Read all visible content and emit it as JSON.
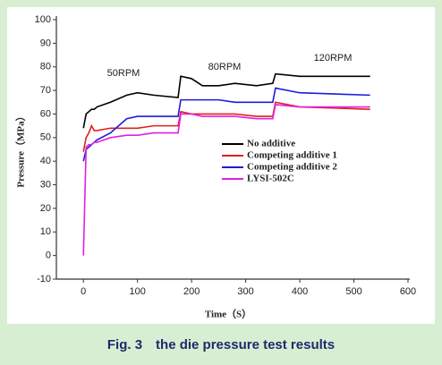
{
  "chart_data": {
    "type": "line",
    "caption": "Fig. 3　the die pressure test results",
    "x_label": "Time（S）",
    "y_label": "Pressure（MPa）",
    "annotations": [
      "50RPM",
      "80RPM",
      "120RPM"
    ],
    "x": [
      0,
      5,
      10,
      15,
      20,
      25,
      50,
      80,
      100,
      130,
      175,
      180,
      200,
      220,
      250,
      280,
      320,
      350,
      355,
      400,
      530
    ],
    "series": [
      {
        "name": "No additive",
        "color": "#000000",
        "values": [
          54,
          60,
          61,
          62,
          62,
          63,
          65,
          68,
          69,
          68,
          67,
          76,
          75,
          72,
          72,
          73,
          72,
          73,
          77,
          76,
          76
        ]
      },
      {
        "name": "Competing additive 1",
        "color": "#e0201b",
        "values": [
          44,
          50,
          52,
          55,
          53,
          53,
          54,
          54,
          54,
          55,
          55,
          61,
          60,
          60,
          60,
          60,
          59,
          59,
          65,
          63,
          62
        ]
      },
      {
        "name": "Competing additive 2",
        "color": "#1c1cdc",
        "values": [
          40,
          45,
          46,
          47,
          48,
          49,
          52,
          58,
          59,
          59,
          59,
          66,
          66,
          66,
          66,
          65,
          65,
          65,
          71,
          69,
          68
        ]
      },
      {
        "name": "LYSI-502C",
        "color": "#e020e0",
        "values": [
          0,
          46,
          47,
          47,
          48,
          48,
          50,
          51,
          51,
          52,
          52,
          60,
          60,
          59,
          59,
          59,
          58,
          58,
          64,
          63,
          63
        ]
      }
    ],
    "xlim": [
      -50,
      600
    ],
    "xticks": [
      0,
      100,
      200,
      300,
      400,
      500,
      600
    ],
    "ylim": [
      -10,
      100
    ],
    "yticks": [
      -10,
      0,
      10,
      20,
      30,
      40,
      50,
      60,
      70,
      80,
      90,
      100
    ],
    "grid": false,
    "legend": "right"
  }
}
